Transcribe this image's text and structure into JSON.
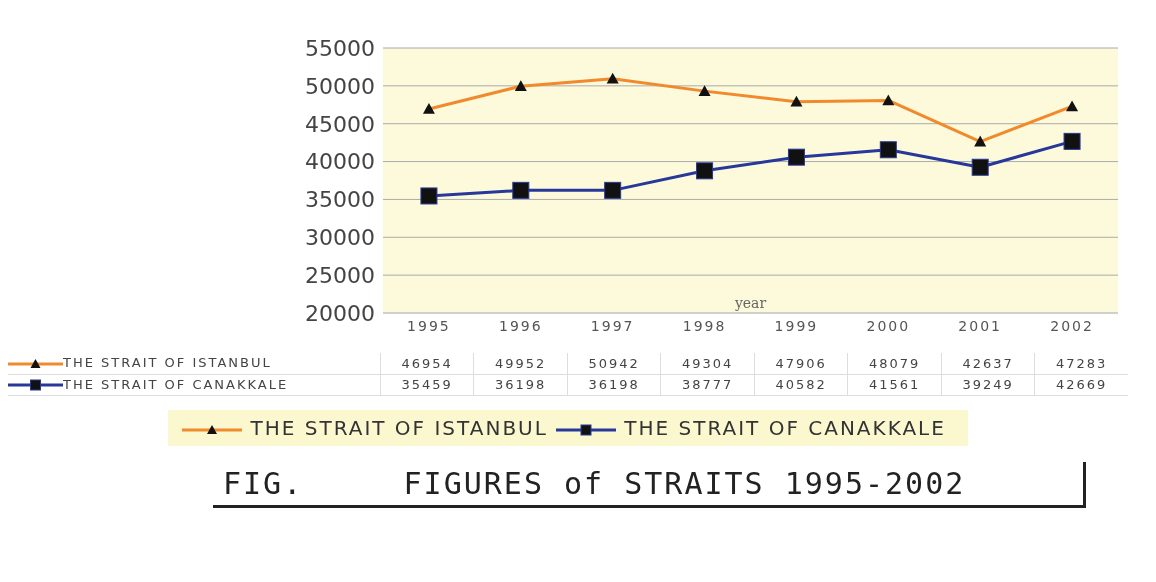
{
  "chart_data": {
    "type": "line",
    "title": "FIG.     FIGURES of STRAITS 1995-2002",
    "xlabel": "year",
    "categories": [
      "1995",
      "1996",
      "1997",
      "1998",
      "1999",
      "2000",
      "2001",
      "2002"
    ],
    "series": [
      {
        "name": "THE STRAIT OF ISTANBUL",
        "color": "#f08a2c",
        "marker": "triangle",
        "values": [
          46954,
          49952,
          50942,
          49304,
          47906,
          48079,
          42637,
          47283
        ]
      },
      {
        "name": "THE STRAIT OF CANAKKALE",
        "color": "#27389a",
        "marker": "square",
        "values": [
          35459,
          36198,
          36198,
          38777,
          40582,
          41561,
          39249,
          42669
        ]
      }
    ],
    "ylim": [
      20000,
      55000
    ],
    "yticks": [
      20000,
      25000,
      30000,
      35000,
      40000,
      45000,
      50000,
      55000
    ],
    "grid": "y",
    "legend": "bottom",
    "data_labels": true,
    "line_style": "solid"
  }
}
